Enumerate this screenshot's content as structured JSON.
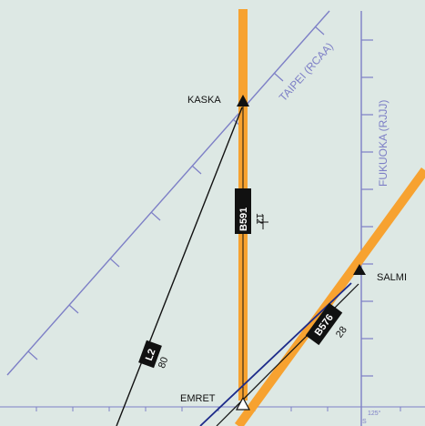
{
  "colors": {
    "background": "#dde8e4",
    "fir_boundary": "#7d7fc6",
    "route_highlight": "#f7a230",
    "route_line": "#111111",
    "route_blue": "#1d2b8a",
    "label_box": "#111111",
    "label_text": "#ffffff",
    "text": "#111111"
  },
  "fir_boundaries": [
    {
      "name": "TAIPEI (RCAA)",
      "style": "tick-marked",
      "color": "#7d7fc6"
    },
    {
      "name": "FUKUOKA (RJJJ)",
      "style": "tick-marked",
      "color": "#7d7fc6"
    }
  ],
  "fixes": [
    {
      "name": "KASKA",
      "symbol": "filled-triangle"
    },
    {
      "name": "SALMI",
      "symbol": "filled-triangle"
    },
    {
      "name": "EMRET",
      "symbol": "open-triangle"
    }
  ],
  "routes": [
    {
      "id": "B591",
      "number": "12",
      "highlighted": true
    },
    {
      "id": "B576",
      "number": "28",
      "highlighted": true
    },
    {
      "id": "L2",
      "number": "80",
      "highlighted": false
    }
  ],
  "grid": {
    "longitude_label": "125°",
    "small_label": "S"
  }
}
